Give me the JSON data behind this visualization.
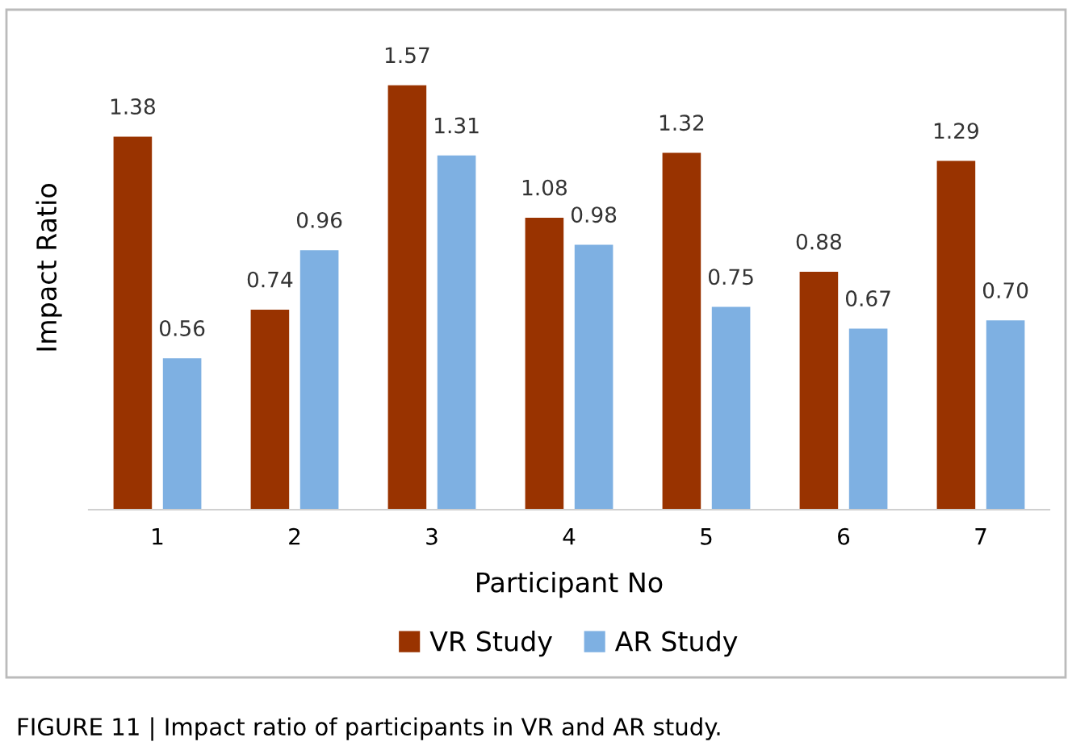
{
  "chart_data": {
    "type": "bar",
    "xlabel": "Participant No",
    "ylabel": "Impact Ratio",
    "categories": [
      "1",
      "2",
      "3",
      "4",
      "5",
      "6",
      "7"
    ],
    "series": [
      {
        "name": "VR Study",
        "color": "#993300",
        "values": [
          1.38,
          0.74,
          1.57,
          1.08,
          1.32,
          0.88,
          1.29
        ],
        "value_labels": [
          "1.38",
          "0.74",
          "1.57",
          "1.08",
          "1.32",
          "0.88",
          "1.29"
        ]
      },
      {
        "name": "AR Study",
        "color": "#7eb0e2",
        "values": [
          0.56,
          0.96,
          1.31,
          0.98,
          0.75,
          0.67,
          0.7
        ],
        "value_labels": [
          "0.56",
          "0.96",
          "1.31",
          "0.98",
          "0.75",
          "0.67",
          "0.70"
        ]
      }
    ],
    "data_labels": true,
    "legend": "bottom",
    "grid": false,
    "tick_labels": "x",
    "annotations": [
      "FIGURE 11 | Impact ratio of participants in VR and AR study."
    ]
  }
}
